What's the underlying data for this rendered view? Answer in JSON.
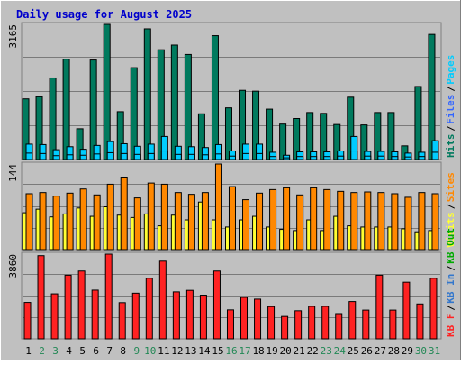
{
  "title": "Daily usage for August 2025",
  "colors": {
    "background": "#c0c0c0",
    "title": "#0000cc",
    "gridline": "#7a7a7a",
    "pages": "#00ccff",
    "files": "#3366ff",
    "hits": "#007a5e",
    "visits": "#ffff33",
    "sites": "#ff8800",
    "kb_in": "#3377cc",
    "kb_out": "#00aa00",
    "kb_f": "#ff2222",
    "weekend_day": "#228855",
    "weekday_day": "#000000"
  },
  "chart_data": [
    {
      "type": "bar",
      "panel": "hits",
      "ymax_label": "3165",
      "categories": [
        "1",
        "2",
        "3",
        "4",
        "5",
        "6",
        "7",
        "8",
        "9",
        "10",
        "11",
        "12",
        "13",
        "14",
        "15",
        "16",
        "17",
        "18",
        "19",
        "20",
        "21",
        "22",
        "23",
        "24",
        "25",
        "26",
        "27",
        "28",
        "29",
        "30",
        "31"
      ],
      "weekend_days": [
        "2",
        "3",
        "9",
        "10",
        "16",
        "17",
        "23",
        "24",
        "30",
        "31"
      ],
      "legend": [
        "Hits",
        "Files",
        "Pages"
      ],
      "series": [
        {
          "name": "Hits",
          "values": [
            1420,
            1470,
            1910,
            2350,
            720,
            2330,
            3165,
            1120,
            2150,
            3060,
            2570,
            2680,
            2460,
            1070,
            2900,
            1210,
            1620,
            1600,
            1180,
            830,
            960,
            1100,
            1080,
            820,
            1460,
            810,
            1100,
            1100,
            320,
            1710,
            2930
          ]
        },
        {
          "name": "Files",
          "values": [
            360,
            350,
            230,
            300,
            240,
            330,
            420,
            370,
            310,
            360,
            540,
            310,
            300,
            280,
            350,
            200,
            360,
            360,
            170,
            100,
            180,
            180,
            180,
            200,
            540,
            190,
            190,
            180,
            150,
            170,
            440
          ]
        },
        {
          "name": "Pages",
          "values": [
            150,
            140,
            90,
            110,
            100,
            130,
            160,
            140,
            120,
            140,
            200,
            120,
            120,
            110,
            130,
            80,
            140,
            140,
            70,
            40,
            70,
            70,
            70,
            80,
            200,
            80,
            80,
            70,
            60,
            70,
            170
          ]
        }
      ]
    },
    {
      "type": "bar",
      "panel": "visits",
      "ymax_label": "144",
      "categories": [
        "1",
        "2",
        "3",
        "4",
        "5",
        "6",
        "7",
        "8",
        "9",
        "10",
        "11",
        "12",
        "13",
        "14",
        "15",
        "16",
        "17",
        "18",
        "19",
        "20",
        "21",
        "22",
        "23",
        "24",
        "25",
        "26",
        "27",
        "28",
        "29",
        "30",
        "31"
      ],
      "legend": [
        "Visits",
        "Sites"
      ],
      "series": [
        {
          "name": "Visits",
          "values": [
            62,
            68,
            55,
            60,
            70,
            56,
            72,
            58,
            54,
            60,
            40,
            58,
            50,
            80,
            50,
            38,
            50,
            56,
            38,
            34,
            32,
            50,
            32,
            56,
            40,
            38,
            38,
            38,
            35,
            30,
            32
          ]
        },
        {
          "name": "Sites",
          "values": [
            94,
            96,
            90,
            95,
            102,
            92,
            110,
            122,
            87,
            112,
            110,
            96,
            93,
            96,
            144,
            106,
            84,
            95,
            101,
            104,
            92,
            104,
            101,
            98,
            96,
            97,
            96,
            94,
            88,
            96,
            94
          ]
        }
      ]
    },
    {
      "type": "bar",
      "panel": "kbytes",
      "ymax_label": "3860",
      "categories": [
        "1",
        "2",
        "3",
        "4",
        "5",
        "6",
        "7",
        "8",
        "9",
        "10",
        "11",
        "12",
        "13",
        "14",
        "15",
        "16",
        "17",
        "18",
        "19",
        "20",
        "21",
        "22",
        "23",
        "24",
        "25",
        "26",
        "27",
        "28",
        "29",
        "30",
        "31"
      ],
      "legend": [
        "KB F",
        "KB In",
        "KB Out"
      ],
      "series": [
        {
          "name": "KB F",
          "values": [
            1660,
            3790,
            2050,
            2900,
            3090,
            2220,
            3860,
            1650,
            2080,
            2760,
            3540,
            2140,
            2210,
            1990,
            3090,
            1320,
            1890,
            1810,
            1470,
            1020,
            1280,
            1480,
            1480,
            1150,
            1700,
            1310,
            2900,
            1310,
            2580,
            1590,
            2760
          ]
        }
      ]
    }
  ]
}
